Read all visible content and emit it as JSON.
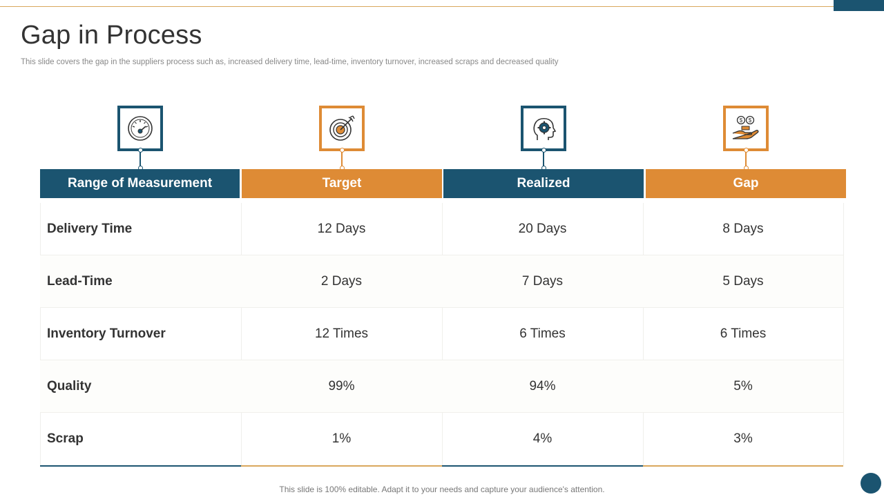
{
  "slide": {
    "title": "Gap in Process",
    "subtitle": "This slide covers  the gap in the suppliers process such as, increased delivery time, lead-time, inventory turnover,  increased scraps and decreased quality",
    "footer": "This slide is 100% editable. Adapt it to your needs and capture your audience's attention."
  },
  "colors": {
    "teal": "#1b5470",
    "orange": "#de8b35"
  },
  "table": {
    "columns": [
      {
        "label": "Range of Measurement",
        "icon": "speedometer-icon",
        "color": "teal"
      },
      {
        "label": "Target",
        "icon": "target-arrow-icon",
        "color": "orange"
      },
      {
        "label": "Realized",
        "icon": "head-gear-icon",
        "color": "teal"
      },
      {
        "label": "Gap",
        "icon": "money-hand-icon",
        "color": "orange"
      }
    ],
    "rows": [
      {
        "metric": "Delivery Time",
        "target": "12 Days",
        "realized": "20 Days",
        "gap": "8 Days"
      },
      {
        "metric": "Lead-Time",
        "target": "2 Days",
        "realized": "7 Days",
        "gap": "5 Days"
      },
      {
        "metric": "Inventory Turnover",
        "target": "12 Times",
        "realized": "6 Times",
        "gap": "6 Times"
      },
      {
        "metric": "Quality",
        "target": "99%",
        "realized": "94%",
        "gap": "5%"
      },
      {
        "metric": "Scrap",
        "target": "1%",
        "realized": "4%",
        "gap": "3%"
      }
    ]
  }
}
